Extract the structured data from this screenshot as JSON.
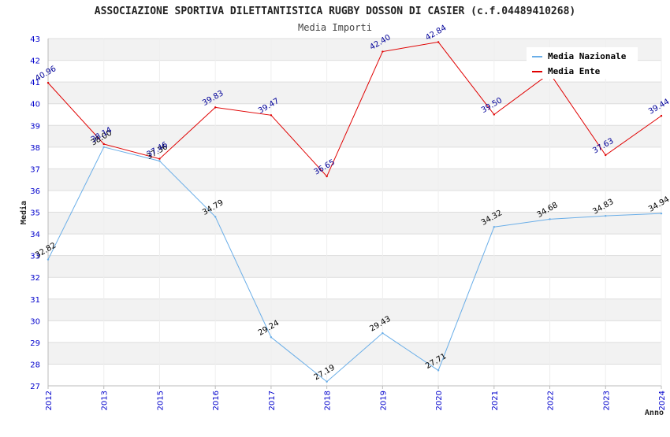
{
  "chart_data": {
    "type": "line",
    "title": "ASSOCIAZIONE SPORTIVA DILETTANTISTICA RUGBY DOSSON DI CASIER (c.f.04489410268)",
    "subtitle": "Media Importi",
    "xlabel": "Anno",
    "ylabel": "Media",
    "categories": [
      "2012",
      "2013",
      "2015",
      "2016",
      "2017",
      "2018",
      "2019",
      "2020",
      "2021",
      "2022",
      "2023",
      "2024"
    ],
    "ylim": [
      27,
      43
    ],
    "yticks": [
      27,
      28,
      29,
      30,
      31,
      32,
      33,
      34,
      35,
      36,
      37,
      38,
      39,
      40,
      41,
      42,
      43
    ],
    "grid": "horizontal, alternating bands",
    "legend_position": "top-right",
    "series": [
      {
        "name": "Media Nazionale",
        "color": "#6aaee8",
        "label_color": "#000000",
        "values": [
          32.82,
          38.0,
          37.36,
          34.79,
          29.24,
          27.19,
          29.43,
          27.71,
          34.32,
          34.68,
          34.83,
          34.94
        ],
        "labels": [
          "32.82",
          "38.00",
          "37.36",
          "34.79",
          "29.24",
          "27.19",
          "29.43",
          "27.71",
          "34.32",
          "34.68",
          "34.83",
          "34.94"
        ]
      },
      {
        "name": "Media Ente",
        "color": "#e00000",
        "label_color": "#000099",
        "values": [
          40.96,
          38.14,
          37.46,
          39.83,
          39.47,
          36.65,
          42.4,
          42.84,
          39.5,
          41.4,
          37.63,
          39.44
        ],
        "labels": [
          "40.96",
          "38.14",
          "37.46",
          "39.83",
          "39.47",
          "36.65",
          "42.40",
          "42.84",
          "39.50",
          "",
          "37.63",
          "39.44"
        ]
      }
    ]
  }
}
